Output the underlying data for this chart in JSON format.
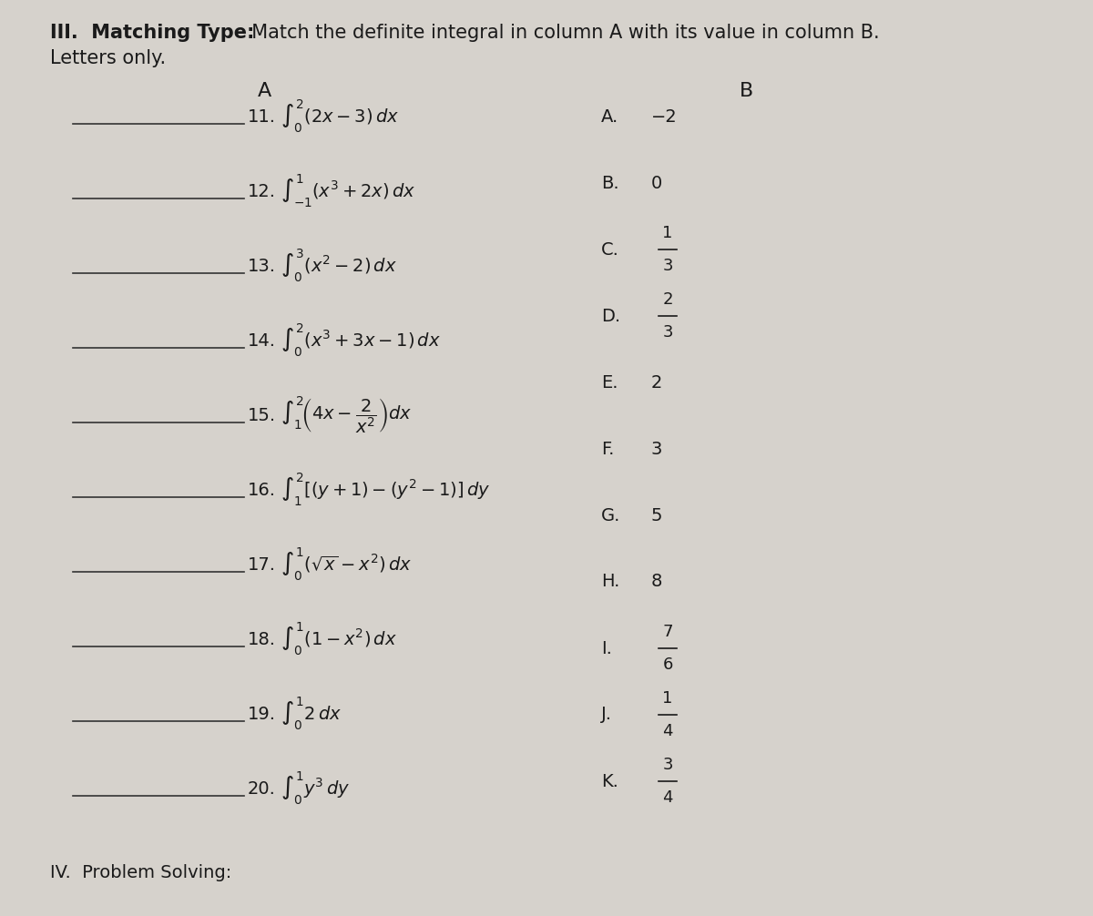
{
  "title_bold": "III.  Matching Type:",
  "title_normal": "  Match the definite integral in column A with its value in column B.",
  "subtitle": "Letters only.",
  "col_a_header": "A",
  "col_b_header": "B",
  "background_color": "#d6d2cc",
  "text_color": "#1a1a1a",
  "figsize": [
    12.0,
    10.06
  ],
  "dpi": 100,
  "items_col_a": [
    {
      "num": "11.",
      "expr": "$\\int_0^2(2x-3)\\,dx$"
    },
    {
      "num": "12.",
      "expr": "$\\int_{-1}^{1}(x^3+2x)\\,dx$"
    },
    {
      "num": "13.",
      "expr": "$\\int_0^3(x^2-2)\\,dx$"
    },
    {
      "num": "14.",
      "expr": "$\\int_0^2(x^3+3x-1)\\,dx$"
    },
    {
      "num": "15.",
      "expr": "$\\int_1^{2}\\!\\left(4x-\\dfrac{2}{x^2}\\right)dx$"
    },
    {
      "num": "16.",
      "expr": "$\\int_1^2[(y+1)-(y^2-1)]\\,dy$"
    },
    {
      "num": "17.",
      "expr": "$\\int_0^1(\\sqrt{x}-x^2)\\,dx$"
    },
    {
      "num": "18.",
      "expr": "$\\int_0^1(1-x^2)\\,dx$"
    },
    {
      "num": "19.",
      "expr": "$\\int_0^1 2\\,dx$"
    },
    {
      "num": "20.",
      "expr": "$\\int_0^1 y^3\\,dy$"
    }
  ],
  "items_col_b": [
    {
      "letter": "A.",
      "value": "−2"
    },
    {
      "letter": "B.",
      "value": "0"
    },
    {
      "letter": "C.",
      "value": "1/3_frac"
    },
    {
      "letter": "D.",
      "value": "2/3_frac"
    },
    {
      "letter": "E.",
      "value": "2"
    },
    {
      "letter": "F.",
      "value": "3"
    },
    {
      "letter": "G.",
      "value": "5"
    },
    {
      "letter": "H.",
      "value": "8"
    },
    {
      "letter": "I.",
      "value": "7/6_frac"
    },
    {
      "letter": "J.",
      "value": "1/4_frac"
    },
    {
      "letter": "K.",
      "value": "3/4_frac"
    }
  ],
  "footer": "IV.  Problem Solving:"
}
